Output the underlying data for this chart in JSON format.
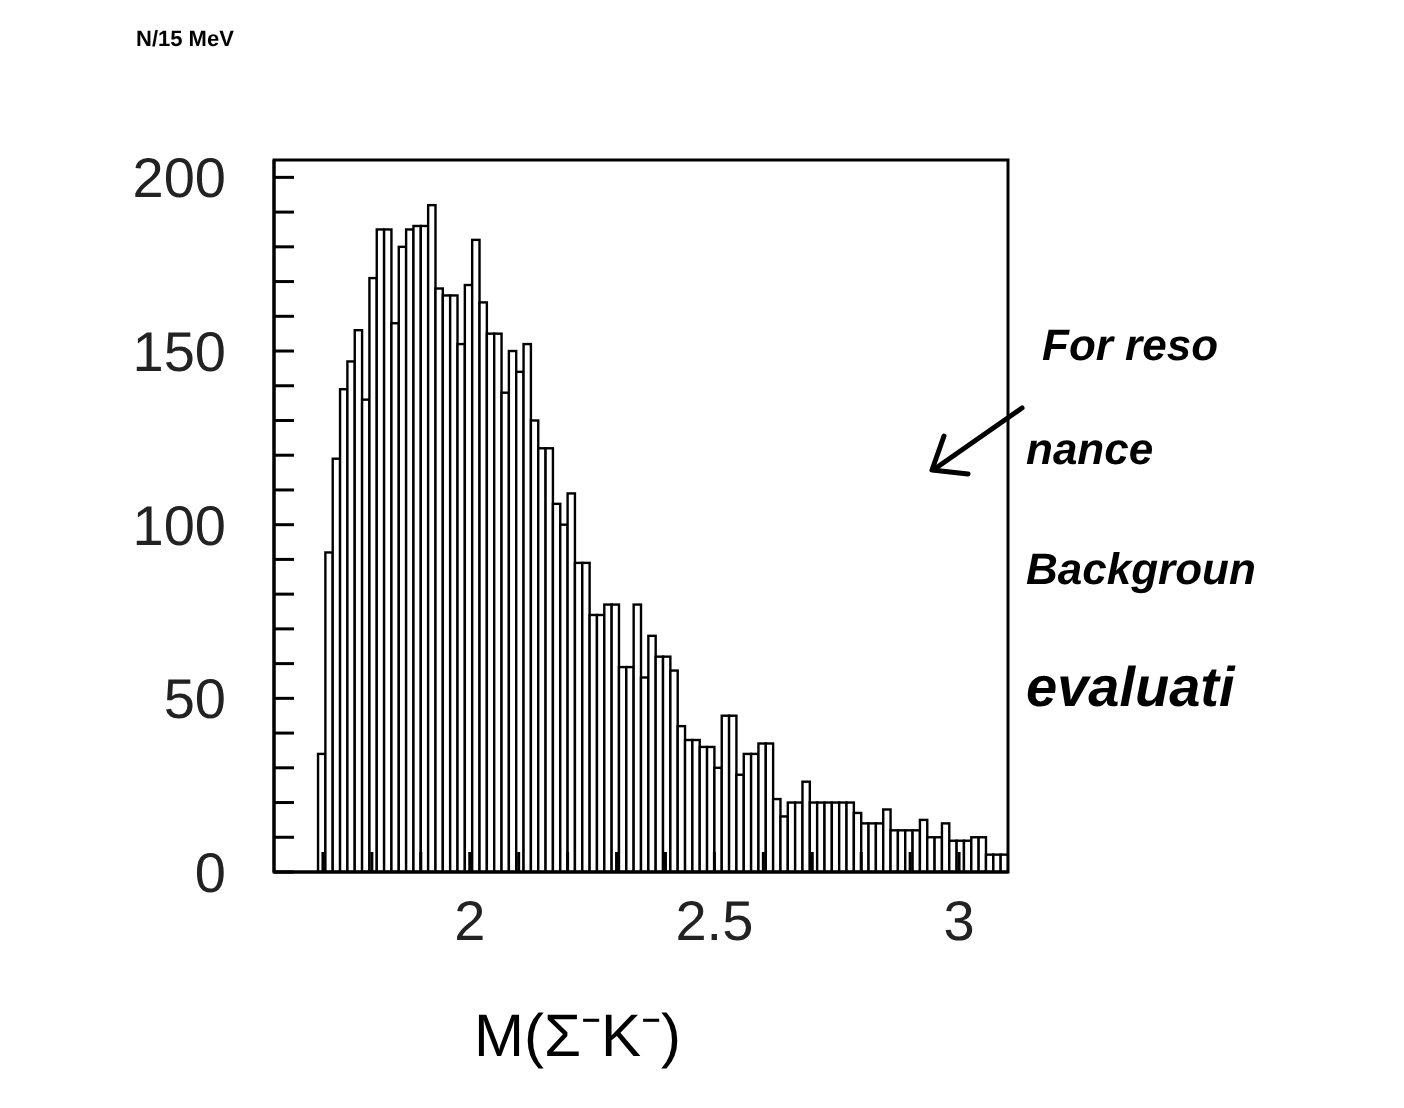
{
  "chart_data": {
    "type": "histogram",
    "ylabel": "N/15 MeV",
    "xlabel": "M(Σ⁻K⁻)",
    "color": "#000000",
    "annotations": [
      "For reso",
      "nance",
      "Backgroun",
      "evaluati"
    ],
    "bins": [
      1.69,
      1.705,
      1.72,
      1.735,
      1.75,
      1.765,
      1.78,
      1.795,
      1.81,
      1.825,
      1.84,
      1.855,
      1.87,
      1.885,
      1.9,
      1.915,
      1.93,
      1.945,
      1.96,
      1.975,
      1.99,
      2.005,
      2.02,
      2.035,
      2.05,
      2.065,
      2.08,
      2.095,
      2.11,
      2.125,
      2.14,
      2.155,
      2.17,
      2.185,
      2.2,
      2.215,
      2.23,
      2.245,
      2.26,
      2.275,
      2.29,
      2.305,
      2.32,
      2.335,
      2.35,
      2.365,
      2.38,
      2.395,
      2.41,
      2.425,
      2.44,
      2.455,
      2.47,
      2.485,
      2.5,
      2.515,
      2.53,
      2.545,
      2.56,
      2.575,
      2.59,
      2.605,
      2.62,
      2.635,
      2.65,
      2.665,
      2.68,
      2.695,
      2.71,
      2.725,
      2.74,
      2.755,
      2.77,
      2.785,
      2.8,
      2.815,
      2.83,
      2.845,
      2.86,
      2.875,
      2.89,
      2.905,
      2.92,
      2.935,
      2.95,
      2.965,
      2.98,
      2.995,
      3.01,
      3.025,
      3.04,
      3.055,
      3.07,
      3.085,
      3.1
    ],
    "values": [
      34,
      92,
      119,
      139,
      147,
      156,
      136,
      171,
      185,
      185,
      158,
      180,
      185,
      186,
      186,
      192,
      168,
      166,
      166,
      152,
      169,
      182,
      164,
      155,
      155,
      138,
      150,
      144,
      152,
      130,
      122,
      122,
      106,
      100,
      109,
      89,
      89,
      74,
      74,
      77,
      77,
      59,
      59,
      77,
      56,
      68,
      62,
      62,
      58,
      42,
      38,
      38,
      36,
      36,
      30,
      45,
      45,
      28,
      34,
      34,
      37,
      37,
      21,
      16,
      20,
      20,
      26,
      20,
      20,
      20,
      20,
      20,
      20,
      17,
      14,
      14,
      14,
      18,
      12,
      12,
      12,
      12,
      15,
      10,
      10,
      14,
      9,
      9,
      9,
      10,
      10,
      5,
      5,
      5
    ],
    "xlim": [
      1.6,
      3.1
    ],
    "ylim": [
      0,
      205
    ],
    "xticks": [
      {
        "value": 1.7,
        "label": null
      },
      {
        "value": 1.8,
        "label": null
      },
      {
        "value": 1.9,
        "label": null
      },
      2,
      {
        "value": 2.1,
        "label": null
      },
      {
        "value": 2.2,
        "label": null
      },
      {
        "value": 2.3,
        "label": null
      },
      {
        "value": 2.4,
        "label": null
      },
      2.5,
      {
        "value": 2.6,
        "label": null
      },
      {
        "value": 2.7,
        "label": null
      },
      {
        "value": 2.8,
        "label": null
      },
      {
        "value": 2.9,
        "label": null
      },
      3
    ],
    "yticks": [
      0,
      {
        "value": 10,
        "label": null
      },
      {
        "value": 20,
        "label": null
      },
      {
        "value": 30,
        "label": null
      },
      {
        "value": 40,
        "label": null
      },
      50,
      {
        "value": 60,
        "label": null
      },
      {
        "value": 70,
        "label": null
      },
      {
        "value": 80,
        "label": null
      },
      {
        "value": 90,
        "label": null
      },
      100,
      {
        "value": 110,
        "label": null
      },
      {
        "value": 120,
        "label": null
      },
      {
        "value": 130,
        "label": null
      },
      {
        "value": 140,
        "label": null
      },
      150,
      {
        "value": 160,
        "label": null
      },
      {
        "value": 170,
        "label": null
      },
      {
        "value": 180,
        "label": null
      },
      {
        "value": 190,
        "label": null
      },
      200
    ]
  }
}
